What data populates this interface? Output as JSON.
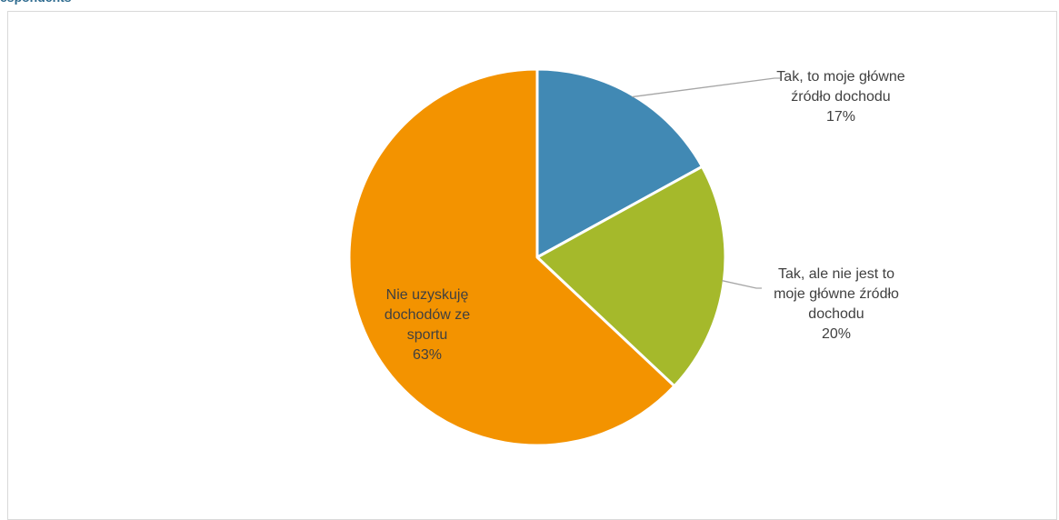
{
  "header": {
    "label": "espondents"
  },
  "chart_data": {
    "type": "pie",
    "categories": [
      "Tak, to moje główne źródło dochodu",
      "Tak, ale nie jest to moje główne źródło dochodu",
      "Nie uzyskuję dochodów ze sportu"
    ],
    "values": [
      17,
      20,
      63
    ],
    "value_labels": [
      "17%",
      "20%",
      "63%"
    ],
    "colors": [
      "#4189b4",
      "#a5b92b",
      "#f39300"
    ],
    "title": "",
    "legend": "none"
  },
  "slice_labels": {
    "s0": [
      "Tak, to moje główne",
      "źródło dochodu"
    ],
    "s1": [
      "Tak, ale nie jest to",
      "moje główne źródło",
      "dochodu"
    ],
    "s2": [
      "Nie uzyskuję",
      "dochodów ze",
      "sportu"
    ]
  }
}
